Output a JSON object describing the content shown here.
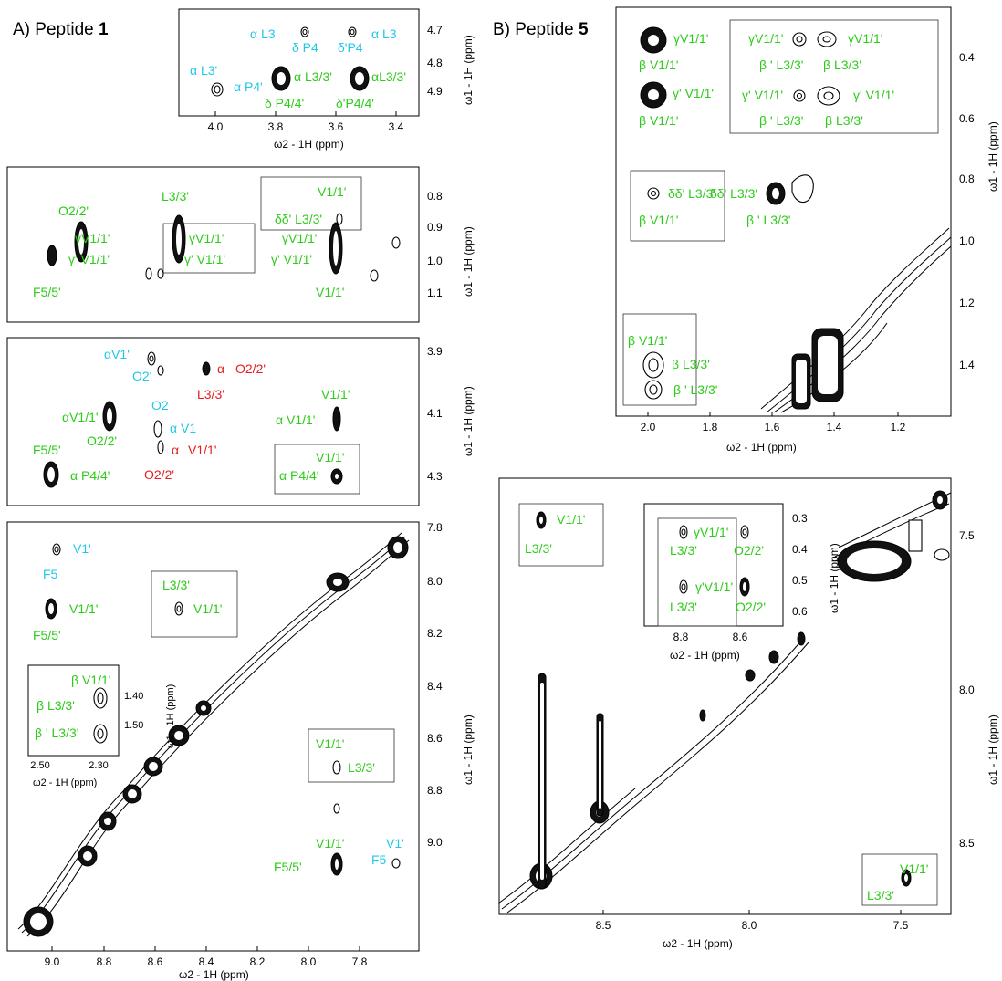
{
  "panel_titles": {
    "a_prefix": "A) Peptide ",
    "a_num": "1",
    "b_prefix": "B) Peptide ",
    "b_num": "5"
  },
  "axes": {
    "w1": "ω1 - 1H (ppm)",
    "w2": "ω2 - 1H (ppm)"
  },
  "ticks": {
    "a1_x": [
      "4.0",
      "3.8",
      "3.6",
      "3.4"
    ],
    "a1_y": [
      "4.7",
      "4.8",
      "4.9"
    ],
    "a2_y": [
      "0.8",
      "0.9",
      "1.0",
      "1.1"
    ],
    "a3_y": [
      "3.9",
      "4.1",
      "4.3"
    ],
    "a4_x": [
      "9.0",
      "8.8",
      "8.6",
      "8.4",
      "8.2",
      "8.0",
      "7.8"
    ],
    "a4_y": [
      "7.8",
      "8.0",
      "8.2",
      "8.4",
      "8.6",
      "8.8",
      "9.0"
    ],
    "a4_inset_x": [
      "2.50",
      "2.30"
    ],
    "a4_inset_y": [
      "1.40",
      "1.50"
    ],
    "b1_x": [
      "2.0",
      "1.8",
      "1.6",
      "1.4",
      "1.2"
    ],
    "b1_y": [
      "0.4",
      "0.6",
      "0.8",
      "1.0",
      "1.2",
      "1.4"
    ],
    "b2_x": [
      "8.5",
      "8.0",
      "7.5"
    ],
    "b2_y": [
      "7.5",
      "8.0",
      "8.5"
    ],
    "b2_inset_x": [
      "8.8",
      "8.6"
    ],
    "b2_inset_y": [
      "0.3",
      "0.4",
      "0.5",
      "0.6"
    ]
  },
  "labels": {
    "a1": [
      "α L3",
      "δ P4",
      "δ'P4",
      "α L3",
      "α  L3'",
      "α P4'",
      "α L3/3'",
      "αL3/3'",
      "δ P4/4'",
      "δ'P4/4'"
    ],
    "a2": [
      "O2/2'",
      "L3/3'",
      "γV1/1'",
      "γ' V1/1'",
      "γV1/1'",
      "γ' V1/1'",
      "F5/5'",
      "V1/1'",
      "δδ' L3/3'",
      "γV1/1'",
      "γ' V1/1'",
      "V1/1'"
    ],
    "a3": [
      "αV1'",
      "O2'",
      "α",
      "O2/2'",
      "L3/3'",
      "αV1/1'",
      "O2",
      "α  V1",
      "O2/2'",
      "α",
      "V1/1'",
      "O2/2'",
      "F5/5'",
      "α P4/4'",
      "V1/1'",
      "α V1/1'",
      "V1/1'",
      "α P4/4'"
    ],
    "a4": [
      "V1'",
      "F5",
      "V1/1'",
      "F5/5'",
      "L3/3'",
      "V1/1'",
      "β V1/1'",
      "β L3/3'",
      "β ' L3/3'",
      "V1/1'",
      "L3/3'",
      "V1/1'",
      "F5/5'",
      "V1'",
      "F5"
    ],
    "b1": [
      "γV1/1'",
      "β V1/1'",
      "γ' V1/1'",
      "β V1/1'",
      "γV1/1'",
      "γV1/1'",
      "β ' L3/3'",
      "β L3/3'",
      "γ' V1/1'",
      "γ' V1/1'",
      "β ' L3/3'",
      "β L3/3'",
      "δδ' L3/3'",
      "β V1/1'",
      "δδ' L3/3'",
      "β ' L3/3'",
      "β V1/1'",
      "β L3/3'",
      "β ' L3/3'"
    ],
    "b2": [
      "V1/1'",
      "L3/3'",
      "γV1/1'",
      "L3/3'",
      "O2/2'",
      "γ'V1/1'",
      "L3/3'",
      "O2/2'",
      "V1/1'",
      "L3/3'"
    ]
  }
}
